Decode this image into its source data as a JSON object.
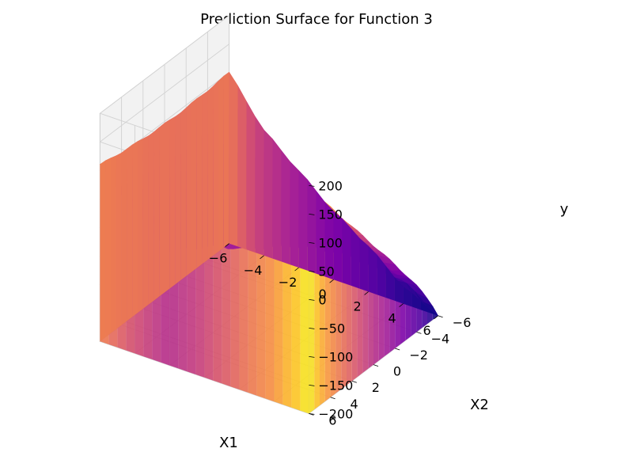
{
  "chart_data": {
    "type": "surface3d",
    "title": "Prediction Surface for Function 3",
    "xlabel": "X1",
    "ylabel": "X2",
    "zlabel": "y",
    "xlim": [
      -6,
      6
    ],
    "ylim": [
      -6,
      6
    ],
    "zlim": [
      -200,
      200
    ],
    "x_ticks": [
      "−6",
      "−4",
      "−2",
      "0",
      "2",
      "4",
      "6"
    ],
    "y_ticks": [
      "−6",
      "−4",
      "−2",
      "0",
      "2",
      "4",
      "6"
    ],
    "z_ticks": [
      "−200",
      "−150",
      "−100",
      "−50",
      "0",
      "50",
      "100",
      "150",
      "200"
    ],
    "colormap": "plasma",
    "grid": true,
    "surface_profile": {
      "description_x1": [
        -6,
        -4,
        -2,
        0,
        2,
        4,
        6
      ],
      "at_x2_min": [
        100,
        20,
        -30,
        -80,
        -120,
        -170,
        -200
      ],
      "at_x2_max": [
        110,
        50,
        0,
        40,
        90,
        140,
        195
      ]
    }
  }
}
